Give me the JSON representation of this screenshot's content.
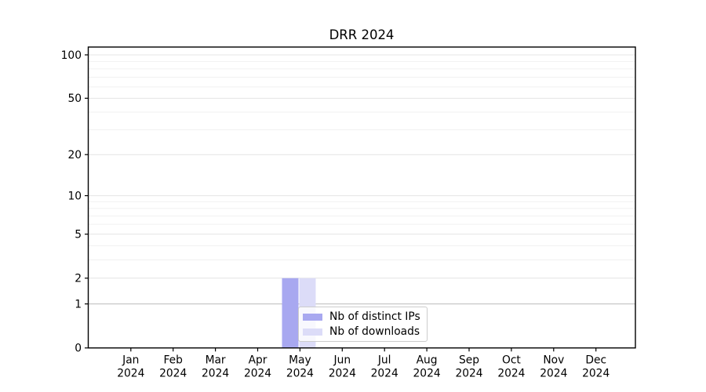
{
  "figure": {
    "title": "DRR 2024"
  },
  "chart_data": {
    "type": "bar",
    "title": "DRR 2024",
    "categories": [
      "Jan 2024",
      "Feb 2024",
      "Mar 2024",
      "Apr 2024",
      "May 2024",
      "Jun 2024",
      "Jul 2024",
      "Aug 2024",
      "Sep 2024",
      "Oct 2024",
      "Nov 2024",
      "Dec 2024"
    ],
    "series": [
      {
        "name": "Nb of distinct IPs",
        "color": "#a8a8f0",
        "values": [
          0,
          0,
          0,
          0,
          2,
          0,
          0,
          0,
          0,
          0,
          0,
          0
        ]
      },
      {
        "name": "Nb of downloads",
        "color": "#dcdcf8",
        "values": [
          0,
          0,
          0,
          0,
          2,
          0,
          0,
          0,
          0,
          0,
          0,
          0
        ]
      }
    ],
    "xlabel": "",
    "ylabel": "",
    "yscale": "log1p",
    "ylim": [
      0,
      113
    ],
    "yticks": [
      0,
      1,
      2,
      5,
      10,
      20,
      50,
      100
    ],
    "y_minor_gridlines": [
      3,
      4,
      6,
      7,
      8,
      9,
      30,
      40,
      60,
      70,
      80,
      90
    ],
    "grid": true,
    "legend": {
      "position": "lower center",
      "entries": [
        "Nb of distinct IPs",
        "Nb of downloads"
      ]
    },
    "style": {
      "grid_minor_color": "#f1f1f1",
      "grid_major_color": "#e4e4e4",
      "grid_unit_color": "#c8c8c8",
      "axis_color": "#000000",
      "background": "#ffffff"
    }
  }
}
